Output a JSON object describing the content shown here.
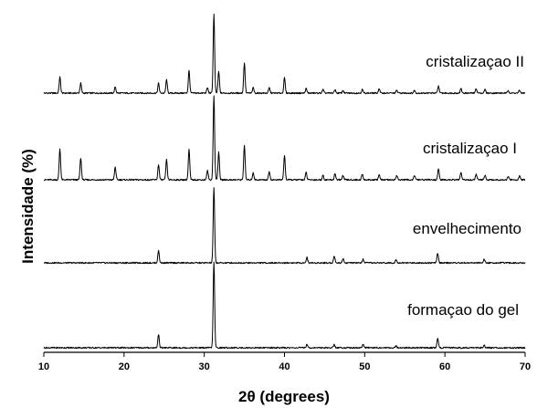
{
  "chart_data": {
    "type": "line",
    "title": "",
    "xlabel": "2θ (degrees)",
    "ylabel": "Intensidade (%)",
    "xlim": [
      10,
      70
    ],
    "xticks": [
      10,
      20,
      30,
      40,
      50,
      60,
      70
    ],
    "y_ticks_shown": false,
    "grid": false,
    "legend": "none",
    "series": [
      {
        "name": "cristalizaçao II",
        "baseline": 0,
        "peaks": [
          [
            12.0,
            18
          ],
          [
            14.6,
            11
          ],
          [
            18.9,
            7
          ],
          [
            24.3,
            11
          ],
          [
            25.3,
            15
          ],
          [
            28.1,
            25
          ],
          [
            30.4,
            6
          ],
          [
            31.2,
            88
          ],
          [
            31.8,
            24
          ],
          [
            35.0,
            34
          ],
          [
            36.1,
            6
          ],
          [
            38.1,
            6
          ],
          [
            40.0,
            17
          ],
          [
            42.7,
            5
          ],
          [
            44.8,
            4
          ],
          [
            46.3,
            4
          ],
          [
            47.3,
            3
          ],
          [
            49.7,
            4
          ],
          [
            51.8,
            5
          ],
          [
            54.0,
            3
          ],
          [
            56.2,
            3
          ],
          [
            59.2,
            8
          ],
          [
            62.0,
            5
          ],
          [
            63.9,
            5
          ],
          [
            65.0,
            4
          ],
          [
            67.9,
            3
          ],
          [
            69.3,
            3
          ]
        ]
      },
      {
        "name": "cristalizaçao I",
        "baseline": 0,
        "peaks": [
          [
            12.0,
            34
          ],
          [
            14.6,
            24
          ],
          [
            18.9,
            14
          ],
          [
            24.3,
            17
          ],
          [
            25.3,
            22
          ],
          [
            28.1,
            33
          ],
          [
            30.4,
            10
          ],
          [
            31.2,
            92
          ],
          [
            31.8,
            30
          ],
          [
            35.0,
            38
          ],
          [
            36.1,
            8
          ],
          [
            38.1,
            9
          ],
          [
            40.0,
            27
          ],
          [
            42.7,
            8
          ],
          [
            44.8,
            5
          ],
          [
            46.3,
            7
          ],
          [
            47.3,
            5
          ],
          [
            49.7,
            6
          ],
          [
            51.8,
            6
          ],
          [
            54.0,
            5
          ],
          [
            56.2,
            5
          ],
          [
            59.2,
            12
          ],
          [
            62.0,
            8
          ],
          [
            63.9,
            6
          ],
          [
            65.0,
            5
          ],
          [
            67.9,
            4
          ],
          [
            69.3,
            4
          ]
        ]
      },
      {
        "name": "envelhecimento",
        "baseline": 0,
        "peaks": [
          [
            24.3,
            14
          ],
          [
            31.2,
            85
          ],
          [
            42.8,
            6
          ],
          [
            46.2,
            8
          ],
          [
            47.3,
            5
          ],
          [
            49.8,
            4
          ],
          [
            53.9,
            4
          ],
          [
            59.1,
            11
          ],
          [
            64.9,
            4
          ]
        ]
      },
      {
        "name": "formaçao do gel",
        "baseline": 0,
        "peaks": [
          [
            24.3,
            15
          ],
          [
            31.2,
            97
          ],
          [
            42.8,
            4
          ],
          [
            46.2,
            4
          ],
          [
            49.8,
            4
          ],
          [
            53.9,
            2
          ],
          [
            59.1,
            11
          ],
          [
            64.9,
            3
          ]
        ]
      }
    ]
  }
}
